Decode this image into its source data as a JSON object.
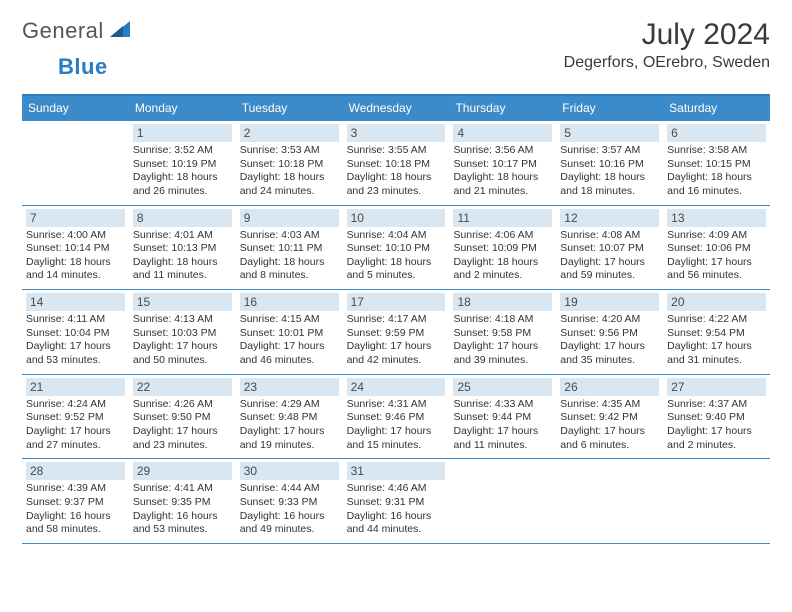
{
  "logo": {
    "general": "General",
    "blue": "Blue"
  },
  "title": {
    "month": "July 2024",
    "location": "Degerfors, OErebro, Sweden"
  },
  "day_headers": [
    "Sunday",
    "Monday",
    "Tuesday",
    "Wednesday",
    "Thursday",
    "Friday",
    "Saturday"
  ],
  "colors": {
    "brand_blue": "#3b8bca",
    "header_bg": "#3b8bca",
    "daynum_bg": "#d9e7f2",
    "text": "#333333"
  },
  "weeks": [
    [
      {
        "num": "",
        "sunrise": "",
        "sunset": "",
        "daylight": ""
      },
      {
        "num": "1",
        "sunrise": "Sunrise: 3:52 AM",
        "sunset": "Sunset: 10:19 PM",
        "daylight": "Daylight: 18 hours and 26 minutes."
      },
      {
        "num": "2",
        "sunrise": "Sunrise: 3:53 AM",
        "sunset": "Sunset: 10:18 PM",
        "daylight": "Daylight: 18 hours and 24 minutes."
      },
      {
        "num": "3",
        "sunrise": "Sunrise: 3:55 AM",
        "sunset": "Sunset: 10:18 PM",
        "daylight": "Daylight: 18 hours and 23 minutes."
      },
      {
        "num": "4",
        "sunrise": "Sunrise: 3:56 AM",
        "sunset": "Sunset: 10:17 PM",
        "daylight": "Daylight: 18 hours and 21 minutes."
      },
      {
        "num": "5",
        "sunrise": "Sunrise: 3:57 AM",
        "sunset": "Sunset: 10:16 PM",
        "daylight": "Daylight: 18 hours and 18 minutes."
      },
      {
        "num": "6",
        "sunrise": "Sunrise: 3:58 AM",
        "sunset": "Sunset: 10:15 PM",
        "daylight": "Daylight: 18 hours and 16 minutes."
      }
    ],
    [
      {
        "num": "7",
        "sunrise": "Sunrise: 4:00 AM",
        "sunset": "Sunset: 10:14 PM",
        "daylight": "Daylight: 18 hours and 14 minutes."
      },
      {
        "num": "8",
        "sunrise": "Sunrise: 4:01 AM",
        "sunset": "Sunset: 10:13 PM",
        "daylight": "Daylight: 18 hours and 11 minutes."
      },
      {
        "num": "9",
        "sunrise": "Sunrise: 4:03 AM",
        "sunset": "Sunset: 10:11 PM",
        "daylight": "Daylight: 18 hours and 8 minutes."
      },
      {
        "num": "10",
        "sunrise": "Sunrise: 4:04 AM",
        "sunset": "Sunset: 10:10 PM",
        "daylight": "Daylight: 18 hours and 5 minutes."
      },
      {
        "num": "11",
        "sunrise": "Sunrise: 4:06 AM",
        "sunset": "Sunset: 10:09 PM",
        "daylight": "Daylight: 18 hours and 2 minutes."
      },
      {
        "num": "12",
        "sunrise": "Sunrise: 4:08 AM",
        "sunset": "Sunset: 10:07 PM",
        "daylight": "Daylight: 17 hours and 59 minutes."
      },
      {
        "num": "13",
        "sunrise": "Sunrise: 4:09 AM",
        "sunset": "Sunset: 10:06 PM",
        "daylight": "Daylight: 17 hours and 56 minutes."
      }
    ],
    [
      {
        "num": "14",
        "sunrise": "Sunrise: 4:11 AM",
        "sunset": "Sunset: 10:04 PM",
        "daylight": "Daylight: 17 hours and 53 minutes."
      },
      {
        "num": "15",
        "sunrise": "Sunrise: 4:13 AM",
        "sunset": "Sunset: 10:03 PM",
        "daylight": "Daylight: 17 hours and 50 minutes."
      },
      {
        "num": "16",
        "sunrise": "Sunrise: 4:15 AM",
        "sunset": "Sunset: 10:01 PM",
        "daylight": "Daylight: 17 hours and 46 minutes."
      },
      {
        "num": "17",
        "sunrise": "Sunrise: 4:17 AM",
        "sunset": "Sunset: 9:59 PM",
        "daylight": "Daylight: 17 hours and 42 minutes."
      },
      {
        "num": "18",
        "sunrise": "Sunrise: 4:18 AM",
        "sunset": "Sunset: 9:58 PM",
        "daylight": "Daylight: 17 hours and 39 minutes."
      },
      {
        "num": "19",
        "sunrise": "Sunrise: 4:20 AM",
        "sunset": "Sunset: 9:56 PM",
        "daylight": "Daylight: 17 hours and 35 minutes."
      },
      {
        "num": "20",
        "sunrise": "Sunrise: 4:22 AM",
        "sunset": "Sunset: 9:54 PM",
        "daylight": "Daylight: 17 hours and 31 minutes."
      }
    ],
    [
      {
        "num": "21",
        "sunrise": "Sunrise: 4:24 AM",
        "sunset": "Sunset: 9:52 PM",
        "daylight": "Daylight: 17 hours and 27 minutes."
      },
      {
        "num": "22",
        "sunrise": "Sunrise: 4:26 AM",
        "sunset": "Sunset: 9:50 PM",
        "daylight": "Daylight: 17 hours and 23 minutes."
      },
      {
        "num": "23",
        "sunrise": "Sunrise: 4:29 AM",
        "sunset": "Sunset: 9:48 PM",
        "daylight": "Daylight: 17 hours and 19 minutes."
      },
      {
        "num": "24",
        "sunrise": "Sunrise: 4:31 AM",
        "sunset": "Sunset: 9:46 PM",
        "daylight": "Daylight: 17 hours and 15 minutes."
      },
      {
        "num": "25",
        "sunrise": "Sunrise: 4:33 AM",
        "sunset": "Sunset: 9:44 PM",
        "daylight": "Daylight: 17 hours and 11 minutes."
      },
      {
        "num": "26",
        "sunrise": "Sunrise: 4:35 AM",
        "sunset": "Sunset: 9:42 PM",
        "daylight": "Daylight: 17 hours and 6 minutes."
      },
      {
        "num": "27",
        "sunrise": "Sunrise: 4:37 AM",
        "sunset": "Sunset: 9:40 PM",
        "daylight": "Daylight: 17 hours and 2 minutes."
      }
    ],
    [
      {
        "num": "28",
        "sunrise": "Sunrise: 4:39 AM",
        "sunset": "Sunset: 9:37 PM",
        "daylight": "Daylight: 16 hours and 58 minutes."
      },
      {
        "num": "29",
        "sunrise": "Sunrise: 4:41 AM",
        "sunset": "Sunset: 9:35 PM",
        "daylight": "Daylight: 16 hours and 53 minutes."
      },
      {
        "num": "30",
        "sunrise": "Sunrise: 4:44 AM",
        "sunset": "Sunset: 9:33 PM",
        "daylight": "Daylight: 16 hours and 49 minutes."
      },
      {
        "num": "31",
        "sunrise": "Sunrise: 4:46 AM",
        "sunset": "Sunset: 9:31 PM",
        "daylight": "Daylight: 16 hours and 44 minutes."
      },
      {
        "num": "",
        "sunrise": "",
        "sunset": "",
        "daylight": ""
      },
      {
        "num": "",
        "sunrise": "",
        "sunset": "",
        "daylight": ""
      },
      {
        "num": "",
        "sunrise": "",
        "sunset": "",
        "daylight": ""
      }
    ]
  ]
}
